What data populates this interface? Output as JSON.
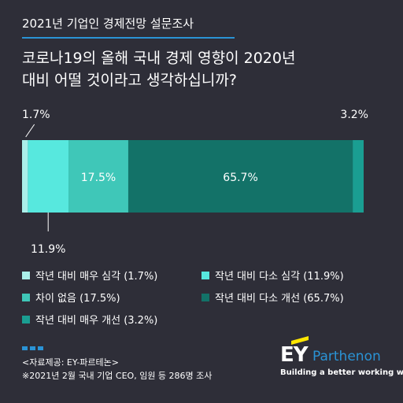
{
  "header": {
    "survey_label": "2021년 기업인 경제전망 설문조사",
    "question_line1": "코로나19의 올해 국내 경제 영향이 2020년",
    "question_line2": "대비 어떨 것이라고 생각하십니까?"
  },
  "chart_data": {
    "type": "bar",
    "orientation": "horizontal-stacked-100",
    "title": "코로나19의 올해 국내 경제 영향이 2020년 대비 어떨 것이라고 생각하십니까?",
    "categories": [
      "작년 대비 매우 심각",
      "작년 대비 다소 심각",
      "차이 없음",
      "작년 대비 다소 개선",
      "작년 대비 매우 개선"
    ],
    "values": [
      1.7,
      11.9,
      17.5,
      65.7,
      3.2
    ],
    "value_labels": [
      "1.7%",
      "11.9%",
      "17.5%",
      "65.7%",
      "3.2%"
    ],
    "colors": [
      "#aaf0ea",
      "#57e8de",
      "#3fc7b8",
      "#137268",
      "#1a9e92"
    ],
    "legend_labels": [
      "작년 대비 매우 심각 (1.7%)",
      "작년 대비 다소 심각 (11.9%)",
      "차이 없음 (17.5%)",
      "작년 대비 다소 개선 (65.7%)",
      "작년 대비 매우 개선 (3.2%)"
    ],
    "legend_placement": "bottom",
    "grid": false
  },
  "footer": {
    "source_line1": "<자료제공: EY-파르테논>",
    "source_line2": "※2021년 2월 국내 기업 CEO, 임원 등 286명 조사"
  },
  "logo": {
    "brand": "EY",
    "name": "Parthenon",
    "tagline": "Building a better working world"
  },
  "colors": {
    "background": "#2e2e38",
    "accent_blue": "#2a93d5",
    "ey_yellow": "#ffe600"
  }
}
